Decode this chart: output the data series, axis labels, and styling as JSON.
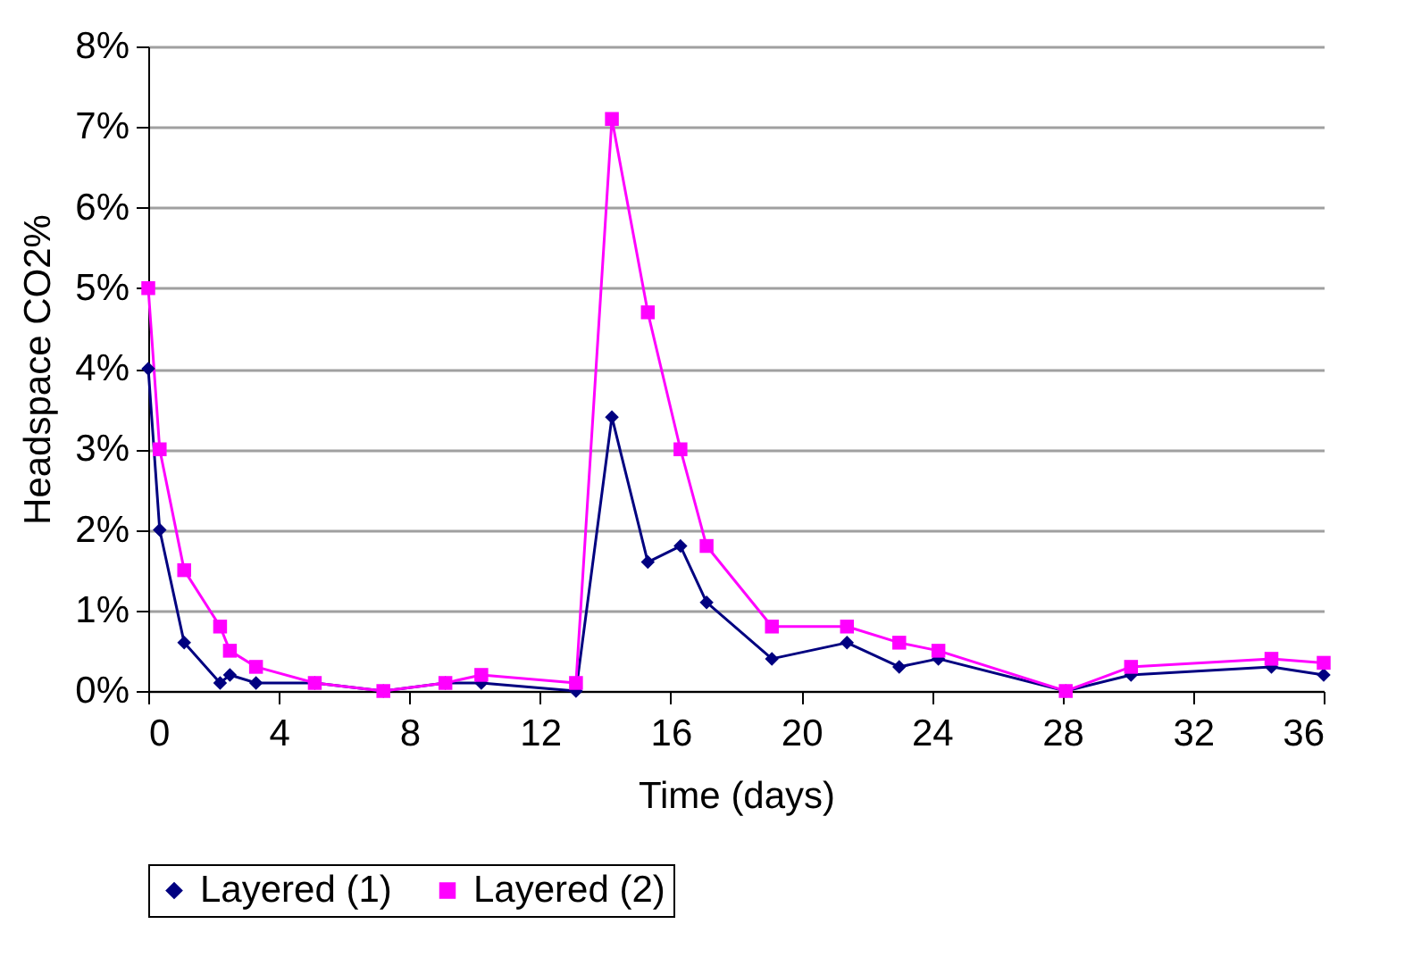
{
  "chart_data": {
    "type": "line",
    "xlabel": "Time (days)",
    "ylabel": "Headspace CO2%",
    "x": [
      0,
      0.35,
      1.1,
      2.2,
      2.5,
      3.3,
      5.1,
      7.2,
      9.1,
      10.2,
      13.1,
      14.2,
      15.3,
      16.3,
      17.1,
      19.1,
      21.4,
      23.0,
      24.2,
      28.1,
      30.1,
      34.4,
      36
    ],
    "series": [
      {
        "name": "Layered (1)",
        "color": "#000080",
        "marker": "diamond",
        "values": [
          4,
          2,
          0.6,
          0.1,
          0.2,
          0.1,
          0.1,
          0,
          0.1,
          0.1,
          0,
          3.4,
          1.6,
          1.8,
          1.1,
          0.4,
          0.6,
          0.3,
          0.4,
          0,
          0.2,
          0.3,
          0.2
        ]
      },
      {
        "name": "Layered (2)",
        "color": "#ff00ff",
        "marker": "square",
        "values": [
          5,
          3,
          1.5,
          0.8,
          0.5,
          0.3,
          0.1,
          0,
          0.1,
          0.2,
          0.1,
          7.1,
          4.7,
          3.0,
          1.8,
          0.8,
          0.8,
          0.6,
          0.5,
          0,
          0.3,
          0.4,
          0.35
        ]
      }
    ],
    "xlim": [
      0,
      36
    ],
    "xticks": [
      0,
      4,
      8,
      12,
      16,
      20,
      24,
      28,
      32,
      36
    ],
    "ylim": [
      0,
      8
    ],
    "yticks": [
      {
        "value": 0,
        "label": "0%"
      },
      {
        "value": 1,
        "label": "1%"
      },
      {
        "value": 2,
        "label": "2%"
      },
      {
        "value": 3,
        "label": "3%"
      },
      {
        "value": 4,
        "label": "4%"
      },
      {
        "value": 5,
        "label": "5%"
      },
      {
        "value": 6,
        "label": "6%"
      },
      {
        "value": 7,
        "label": "7%"
      },
      {
        "value": 8,
        "label": "8%"
      }
    ],
    "grid": "y",
    "legend": "bottom"
  }
}
